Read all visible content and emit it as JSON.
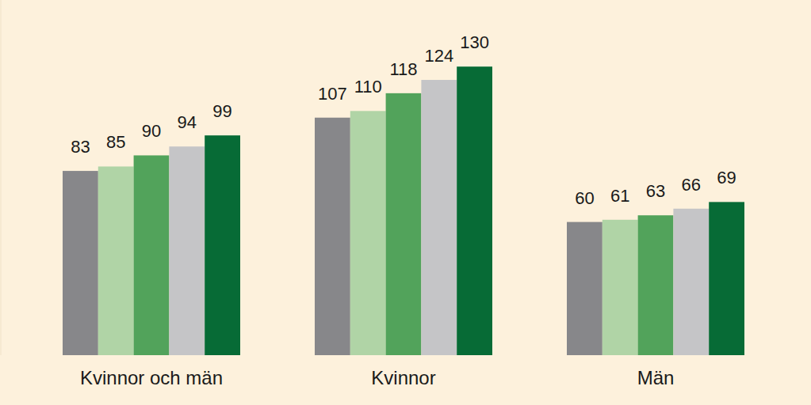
{
  "chart_data": {
    "type": "bar",
    "categories": [
      "Kvinnor och män",
      "Kvinnor",
      "Män"
    ],
    "series": [
      {
        "color": "#87878a",
        "values": [
          83,
          107,
          60
        ]
      },
      {
        "color": "#b0d4a6",
        "values": [
          85,
          110,
          61
        ]
      },
      {
        "color": "#52a35b",
        "values": [
          90,
          118,
          63
        ]
      },
      {
        "color": "#c5c5c7",
        "values": [
          94,
          124,
          66
        ]
      },
      {
        "color": "#076b36",
        "values": [
          99,
          130,
          69
        ]
      }
    ],
    "ylim": [
      0,
      160
    ],
    "yticks": [],
    "grid": false,
    "data_labels": true,
    "tick_labels": "x"
  }
}
